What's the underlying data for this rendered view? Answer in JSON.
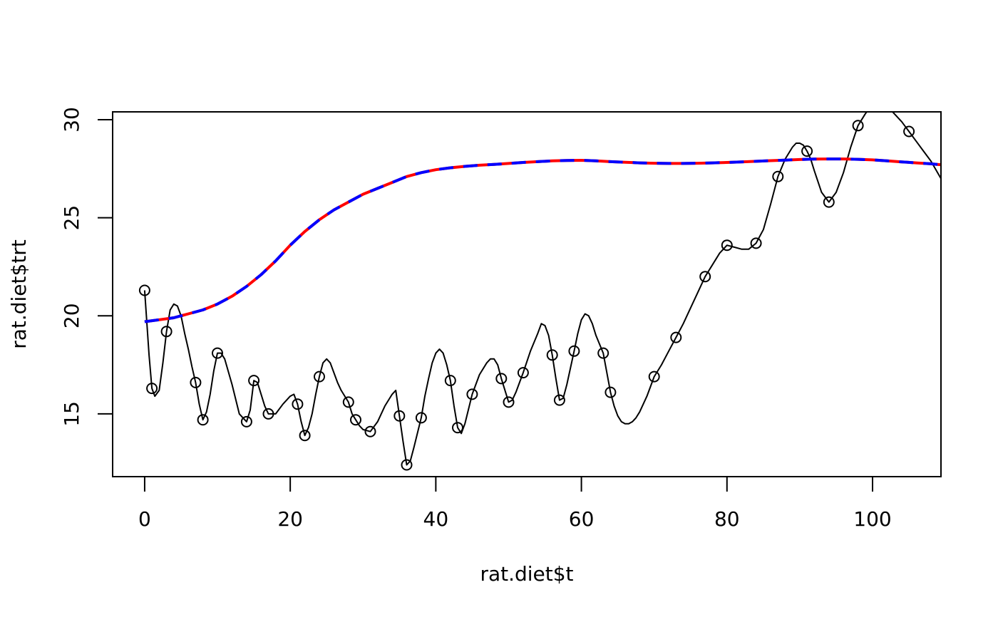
{
  "chart_data": {
    "type": "scatter",
    "title": "",
    "xlabel": "rat.diet$t",
    "ylabel": "rat.diet$trt",
    "xlim": [
      -4.4,
      109.4
    ],
    "ylim": [
      11.8,
      30.4
    ],
    "x_ticks": [
      0,
      20,
      40,
      60,
      80,
      100
    ],
    "y_ticks": [
      15,
      20,
      25,
      30
    ],
    "x_tick_labels": [
      "0",
      "20",
      "40",
      "60",
      "80",
      "100"
    ],
    "y_tick_labels": [
      "15",
      "20",
      "25",
      "30"
    ],
    "grid": false,
    "legend": "none",
    "points": {
      "x": [
        0,
        1,
        3,
        7,
        8,
        10,
        14,
        15,
        17,
        21,
        22,
        24,
        28,
        29,
        31,
        35,
        36,
        38,
        42,
        43,
        45,
        49,
        50,
        52,
        56,
        57,
        59,
        63,
        64,
        70,
        73,
        77,
        80,
        84,
        87,
        91,
        94,
        98,
        105
      ],
      "y": [
        21.3,
        16.3,
        19.2,
        16.6,
        14.7,
        18.1,
        14.6,
        16.7,
        15.0,
        15.5,
        13.9,
        16.9,
        15.6,
        14.7,
        14.1,
        14.9,
        12.4,
        14.8,
        16.7,
        14.3,
        16.0,
        16.8,
        15.6,
        17.1,
        18.0,
        15.7,
        18.2,
        18.1,
        16.1,
        16.9,
        18.9,
        22.0,
        23.6,
        23.7,
        27.1,
        28.4,
        25.8,
        29.7,
        29.4
      ]
    },
    "series": [
      {
        "style": "interpolating spline",
        "color": "#000000",
        "x": [
          0,
          0.6,
          1,
          1.4,
          2,
          2.5,
          3,
          3.5,
          4,
          4.5,
          5,
          5.5,
          6,
          6.5,
          7,
          7.5,
          8,
          8.5,
          9,
          9.5,
          10,
          10.5,
          11,
          12,
          13,
          14,
          14.5,
          15,
          15.5,
          16,
          16.5,
          17,
          18,
          19,
          20,
          20.5,
          21,
          21.5,
          22,
          22.5,
          23,
          23.5,
          24,
          24.5,
          25,
          25.5,
          26,
          26.5,
          27,
          28,
          28.5,
          29,
          29.5,
          30,
          31,
          32,
          33,
          34,
          34.5,
          35,
          35.5,
          36,
          36.5,
          37,
          38,
          38.5,
          39,
          39.5,
          40,
          40.5,
          41,
          41.5,
          42,
          42.5,
          43,
          43.5,
          44,
          45,
          46,
          47,
          47.5,
          48,
          48.5,
          49,
          50,
          50.5,
          51,
          51.5,
          52,
          53,
          54,
          54.5,
          55,
          55.5,
          56,
          56.5,
          57,
          57.5,
          58,
          59,
          59.5,
          60,
          60.5,
          61,
          61.5,
          62,
          63,
          64,
          64.5,
          65,
          65.5,
          66,
          66.5,
          67,
          67.5,
          68,
          69,
          70,
          71,
          72,
          73,
          74,
          75,
          76,
          77,
          78,
          79,
          80,
          81,
          82,
          83,
          84,
          85,
          86,
          87,
          88,
          89,
          89.5,
          90,
          90.5,
          91,
          91.5,
          92,
          93,
          94,
          95,
          96,
          97,
          98,
          99,
          100,
          101,
          102,
          103,
          104,
          105,
          106,
          107,
          108,
          109.4
        ],
        "y": [
          21.3,
          18.0,
          16.3,
          15.9,
          16.2,
          17.6,
          19.2,
          20.3,
          20.6,
          20.5,
          20.0,
          19.1,
          18.3,
          17.4,
          16.6,
          15.5,
          14.7,
          15.1,
          16.0,
          17.2,
          18.1,
          18.1,
          17.8,
          16.5,
          15.0,
          14.6,
          15.2,
          16.7,
          16.6,
          16.0,
          15.4,
          15.0,
          15.0,
          15.5,
          15.9,
          16.0,
          15.5,
          14.6,
          13.9,
          14.3,
          15.0,
          16.0,
          16.9,
          17.6,
          17.8,
          17.6,
          17.1,
          16.6,
          16.2,
          15.6,
          15.0,
          14.7,
          14.4,
          14.2,
          14.1,
          14.6,
          15.4,
          16.0,
          16.2,
          14.9,
          13.6,
          12.4,
          12.6,
          13.3,
          14.8,
          15.9,
          16.8,
          17.6,
          18.1,
          18.3,
          18.1,
          17.5,
          16.7,
          15.4,
          14.3,
          14.0,
          14.5,
          16.0,
          17.0,
          17.6,
          17.8,
          17.8,
          17.5,
          16.8,
          15.6,
          15.7,
          16.1,
          16.6,
          17.1,
          18.2,
          19.1,
          19.6,
          19.5,
          19.0,
          18.0,
          16.8,
          15.7,
          15.8,
          16.5,
          18.2,
          19.1,
          19.8,
          20.1,
          20.0,
          19.6,
          19.0,
          18.1,
          16.1,
          15.4,
          14.9,
          14.6,
          14.5,
          14.5,
          14.6,
          14.8,
          15.1,
          15.9,
          16.9,
          17.5,
          18.2,
          18.9,
          19.6,
          20.4,
          21.2,
          22.0,
          22.6,
          23.2,
          23.6,
          23.5,
          23.4,
          23.4,
          23.7,
          24.4,
          25.7,
          27.1,
          28.0,
          28.6,
          28.8,
          28.8,
          28.7,
          28.4,
          28.0,
          27.4,
          26.3,
          25.8,
          26.3,
          27.3,
          28.6,
          29.7,
          30.3,
          30.8,
          31.0,
          30.7,
          30.3,
          29.9,
          29.4,
          28.9,
          28.4,
          27.9,
          27.0
        ]
      },
      {
        "style": "smooth fit",
        "color": "#ff0000",
        "x": [
          0,
          2,
          4,
          6,
          8,
          10,
          12,
          14,
          16,
          18,
          20,
          22,
          24,
          26,
          28,
          30,
          32,
          34,
          36,
          38,
          40,
          42,
          44,
          46,
          48,
          50,
          52,
          54,
          56,
          58,
          60,
          62,
          64,
          66,
          68,
          70,
          72,
          74,
          76,
          78,
          80,
          82,
          84,
          86,
          88,
          90,
          92,
          94,
          96,
          98,
          100,
          102,
          104,
          106,
          108,
          109.4
        ],
        "y": [
          19.7,
          19.8,
          19.9,
          20.1,
          20.3,
          20.6,
          21.0,
          21.5,
          22.1,
          22.8,
          23.6,
          24.3,
          24.9,
          25.4,
          25.8,
          26.2,
          26.5,
          26.8,
          27.1,
          27.3,
          27.45,
          27.55,
          27.62,
          27.68,
          27.72,
          27.77,
          27.82,
          27.86,
          27.9,
          27.92,
          27.93,
          27.9,
          27.86,
          27.83,
          27.8,
          27.78,
          27.77,
          27.77,
          27.78,
          27.8,
          27.82,
          27.85,
          27.88,
          27.91,
          27.94,
          27.97,
          27.99,
          28.0,
          28.0,
          27.98,
          27.95,
          27.9,
          27.85,
          27.8,
          27.75,
          27.7
        ]
      },
      {
        "style": "smooth fit (dashed)",
        "color": "#0000ff",
        "x": [
          0,
          2,
          4,
          6,
          8,
          10,
          12,
          14,
          16,
          18,
          20,
          22,
          24,
          26,
          28,
          30,
          32,
          34,
          36,
          38,
          40,
          42,
          44,
          46,
          48,
          50,
          52,
          54,
          56,
          58,
          60,
          62,
          64,
          66,
          68,
          70,
          72,
          74,
          76,
          78,
          80,
          82,
          84,
          86,
          88,
          90,
          92,
          94,
          96,
          98,
          100,
          102,
          104,
          106,
          108,
          109.4
        ],
        "y": [
          19.7,
          19.8,
          19.9,
          20.1,
          20.3,
          20.6,
          21.0,
          21.5,
          22.1,
          22.8,
          23.6,
          24.3,
          24.9,
          25.4,
          25.8,
          26.2,
          26.5,
          26.8,
          27.1,
          27.3,
          27.45,
          27.55,
          27.62,
          27.68,
          27.72,
          27.77,
          27.82,
          27.86,
          27.9,
          27.92,
          27.93,
          27.9,
          27.86,
          27.83,
          27.8,
          27.78,
          27.77,
          27.77,
          27.78,
          27.8,
          27.82,
          27.85,
          27.88,
          27.91,
          27.94,
          27.97,
          27.99,
          28.0,
          28.0,
          27.98,
          27.95,
          27.9,
          27.85,
          27.8,
          27.75,
          27.7
        ]
      }
    ]
  }
}
